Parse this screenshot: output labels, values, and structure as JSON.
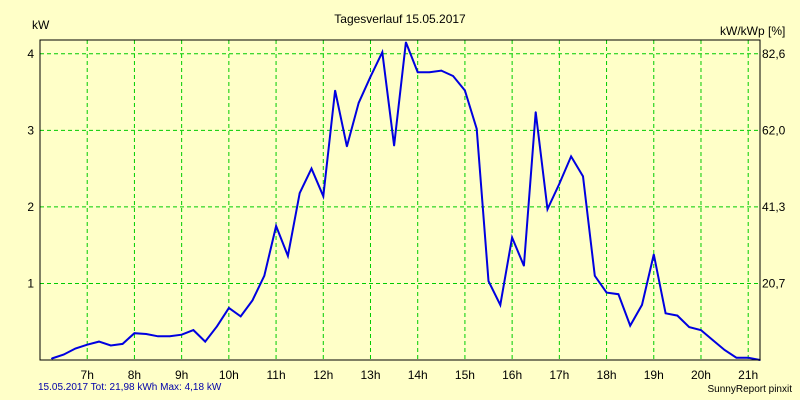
{
  "chart_data": {
    "type": "line",
    "title": "Tagesverlauf 15.05.2017",
    "ylabel_left": "kW",
    "ylabel_right": "kW/kWp [%]",
    "ylim": [
      0,
      4.18
    ],
    "y_ticks_left": [
      "1",
      "2",
      "3",
      "4"
    ],
    "y_ticks_right": [
      "20,7",
      "41,3",
      "62,0",
      "82,6"
    ],
    "x_ticks": [
      "7h",
      "8h",
      "9h",
      "10h",
      "11h",
      "12h",
      "13h",
      "14h",
      "15h",
      "16h",
      "17h",
      "18h",
      "19h",
      "20h",
      "21h"
    ],
    "grid": true,
    "line_color": "#0000e0",
    "grid_color": "#00cc00",
    "series": [
      {
        "x": [
          "06:15",
          "06:30",
          "06:45",
          "07:00",
          "07:15",
          "07:30",
          "07:45",
          "08:00",
          "08:15",
          "08:30",
          "08:45",
          "09:00",
          "09:15",
          "09:30",
          "09:45",
          "10:00",
          "10:15",
          "10:30",
          "10:45",
          "11:00",
          "11:15",
          "11:30",
          "11:45",
          "12:00",
          "12:15",
          "12:30",
          "12:45",
          "13:00",
          "13:15",
          "13:30",
          "13:45",
          "14:00",
          "14:15",
          "14:30",
          "14:45",
          "15:00",
          "15:15",
          "15:30",
          "15:45",
          "16:00",
          "16:15",
          "16:30",
          "16:45",
          "17:00",
          "17:15",
          "17:30",
          "17:45",
          "18:00",
          "18:15",
          "18:30",
          "18:45",
          "19:00",
          "19:15",
          "19:30",
          "19:45",
          "20:00",
          "20:15",
          "20:30",
          "20:45",
          "21:00",
          "21:15"
        ],
        "values": [
          0.02,
          0.07,
          0.15,
          0.2,
          0.24,
          0.19,
          0.21,
          0.35,
          0.34,
          0.31,
          0.31,
          0.33,
          0.39,
          0.24,
          0.44,
          0.68,
          0.57,
          0.78,
          1.1,
          1.75,
          1.36,
          2.18,
          2.5,
          2.14,
          3.52,
          2.79,
          3.36,
          3.7,
          4.02,
          2.8,
          4.15,
          3.76,
          3.76,
          3.78,
          3.71,
          3.52,
          3.02,
          1.03,
          0.72,
          1.6,
          1.23,
          3.24,
          1.97,
          2.3,
          2.66,
          2.4,
          1.1,
          0.88,
          0.86,
          0.45,
          0.72,
          1.38,
          0.61,
          0.58,
          0.43,
          0.39,
          0.26,
          0.13,
          0.03,
          0.03,
          0.0
        ]
      }
    ]
  },
  "footer": {
    "summary": "15.05.2017 Tot: 21,98 kWh Max: 4,18 kW",
    "brand": "SunnyReport pinxit"
  }
}
